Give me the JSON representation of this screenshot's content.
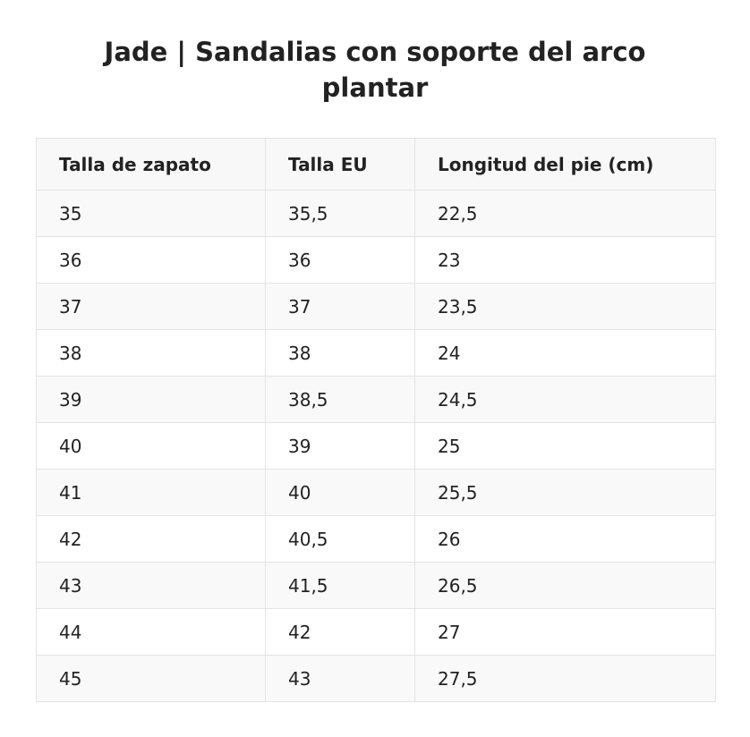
{
  "title": "Jade | Sandalias con soporte del arco plantar",
  "table": {
    "headers": [
      "Talla de zapato",
      "Talla EU",
      "Longitud del pie (cm)"
    ],
    "rows": [
      [
        "35",
        "35,5",
        "22,5"
      ],
      [
        "36",
        "36",
        "23"
      ],
      [
        "37",
        "37",
        "23,5"
      ],
      [
        "38",
        "38",
        "24"
      ],
      [
        "39",
        "38,5",
        "24,5"
      ],
      [
        "40",
        "39",
        "25"
      ],
      [
        "41",
        "40",
        "25,5"
      ],
      [
        "42",
        "40,5",
        "26"
      ],
      [
        "43",
        "41,5",
        "26,5"
      ],
      [
        "44",
        "42",
        "27"
      ],
      [
        "45",
        "43",
        "27,5"
      ]
    ]
  }
}
